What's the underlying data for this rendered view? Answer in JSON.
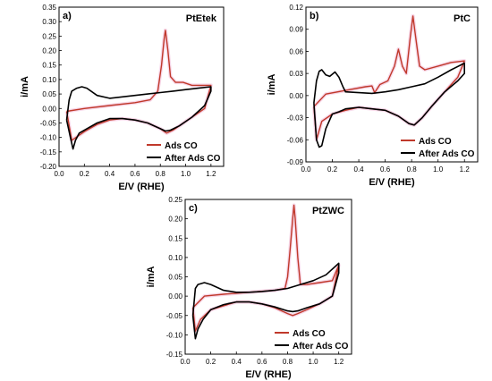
{
  "colors": {
    "ads": "#c0392b",
    "after": "#000000",
    "glow": "#f4c6de"
  },
  "chart_data": [
    {
      "type": "line",
      "panel_label": "a)",
      "title": "PtEtek",
      "xlabel": "E/V (RHE)",
      "ylabel": "i/mA",
      "xlim": [
        0.0,
        1.3
      ],
      "ylim": [
        -0.2,
        0.35
      ],
      "x_ticks": [
        "0.0",
        "0.2",
        "0.4",
        "0.6",
        "0.8",
        "1.0",
        "1.2"
      ],
      "y_ticks": [
        "-0.20",
        "-0.15",
        "-0.10",
        "-0.05",
        "0.00",
        "0.05",
        "0.10",
        "0.15",
        "0.20",
        "0.25",
        "0.30",
        "0.35"
      ],
      "legend": "bottom-right",
      "series": [
        {
          "name": "Ads CO",
          "color": "#c0392b",
          "x": [
            0.06,
            0.2,
            0.4,
            0.6,
            0.72,
            0.78,
            0.81,
            0.83,
            0.84,
            0.86,
            0.88,
            0.92,
            0.98,
            1.05,
            1.1,
            1.15,
            1.2,
            1.15,
            1.05,
            0.95,
            0.9,
            0.85,
            0.8,
            0.7,
            0.6,
            0.5,
            0.4,
            0.3,
            0.2,
            0.1,
            0.06
          ],
          "y": [
            -0.01,
            0.0,
            0.01,
            0.02,
            0.03,
            0.06,
            0.15,
            0.24,
            0.27,
            0.2,
            0.11,
            0.09,
            0.09,
            0.08,
            0.08,
            0.08,
            0.08,
            0.0,
            -0.03,
            -0.06,
            -0.075,
            -0.085,
            -0.07,
            -0.05,
            -0.04,
            -0.035,
            -0.04,
            -0.055,
            -0.08,
            -0.11,
            -0.01
          ]
        },
        {
          "name": "After Ads CO",
          "color": "#000000",
          "x": [
            0.06,
            0.08,
            0.1,
            0.14,
            0.18,
            0.22,
            0.3,
            0.4,
            0.5,
            0.6,
            0.7,
            0.8,
            0.9,
            1.0,
            1.1,
            1.2,
            1.2,
            1.15,
            1.05,
            0.95,
            0.88,
            0.84,
            0.8,
            0.7,
            0.6,
            0.5,
            0.4,
            0.3,
            0.22,
            0.16,
            0.13,
            0.11,
            0.09,
            0.06
          ],
          "y": [
            -0.04,
            0.03,
            0.06,
            0.07,
            0.075,
            0.07,
            0.045,
            0.035,
            0.04,
            0.045,
            0.05,
            0.055,
            0.06,
            0.065,
            0.07,
            0.075,
            0.06,
            0.01,
            -0.03,
            -0.06,
            -0.075,
            -0.078,
            -0.07,
            -0.05,
            -0.04,
            -0.035,
            -0.035,
            -0.05,
            -0.07,
            -0.085,
            -0.11,
            -0.14,
            -0.1,
            -0.04
          ]
        }
      ]
    },
    {
      "type": "line",
      "panel_label": "b)",
      "title": "PtC",
      "xlabel": "E/V (RHE)",
      "ylabel": "i/mA",
      "xlim": [
        0.0,
        1.3
      ],
      "ylim": [
        -0.09,
        0.12
      ],
      "x_ticks": [
        "0.0",
        "0.2",
        "0.4",
        "0.6",
        "0.8",
        "1.0",
        "1.2"
      ],
      "y_ticks": [
        "-0.09",
        "-0.06",
        "-0.03",
        "0.00",
        "0.03",
        "0.06",
        "0.09",
        "0.12"
      ],
      "legend": "bottom-right",
      "series": [
        {
          "name": "Ads CO",
          "color": "#c0392b",
          "x": [
            0.06,
            0.15,
            0.3,
            0.45,
            0.5,
            0.52,
            0.56,
            0.62,
            0.67,
            0.7,
            0.73,
            0.76,
            0.79,
            0.81,
            0.83,
            0.86,
            0.9,
            1.0,
            1.1,
            1.2,
            1.15,
            1.05,
            0.95,
            0.88,
            0.82,
            0.78,
            0.7,
            0.6,
            0.5,
            0.4,
            0.3,
            0.2,
            0.12,
            0.08,
            0.06
          ],
          "y": [
            -0.015,
            0.002,
            0.007,
            0.012,
            0.013,
            0.004,
            0.015,
            0.02,
            0.04,
            0.063,
            0.04,
            0.03,
            0.08,
            0.108,
            0.08,
            0.04,
            0.035,
            0.04,
            0.045,
            0.047,
            0.025,
            0.005,
            -0.015,
            -0.03,
            -0.04,
            -0.038,
            -0.028,
            -0.02,
            -0.018,
            -0.016,
            -0.02,
            -0.025,
            -0.035,
            -0.06,
            -0.015
          ]
        },
        {
          "name": "After Ads CO",
          "color": "#000000",
          "x": [
            0.06,
            0.08,
            0.1,
            0.12,
            0.15,
            0.18,
            0.22,
            0.25,
            0.28,
            0.3,
            0.4,
            0.5,
            0.6,
            0.7,
            0.8,
            0.9,
            1.0,
            1.1,
            1.2,
            1.2,
            1.15,
            1.05,
            0.95,
            0.88,
            0.82,
            0.78,
            0.7,
            0.6,
            0.5,
            0.4,
            0.3,
            0.25,
            0.2,
            0.15,
            0.12,
            0.1,
            0.08,
            0.06
          ],
          "y": [
            -0.01,
            0.02,
            0.033,
            0.035,
            0.028,
            0.026,
            0.032,
            0.025,
            0.012,
            0.005,
            0.004,
            0.003,
            0.005,
            0.008,
            0.012,
            0.016,
            0.025,
            0.035,
            0.044,
            0.03,
            0.02,
            0.005,
            -0.015,
            -0.03,
            -0.04,
            -0.038,
            -0.028,
            -0.02,
            -0.018,
            -0.016,
            -0.018,
            -0.022,
            -0.025,
            -0.045,
            -0.068,
            -0.07,
            -0.06,
            -0.01
          ]
        }
      ]
    },
    {
      "type": "line",
      "panel_label": "c)",
      "title": "PtZWC",
      "xlabel": "E/V (RHE)",
      "ylabel": "i/mA",
      "xlim": [
        0.0,
        1.3
      ],
      "ylim": [
        -0.15,
        0.25
      ],
      "x_ticks": [
        "0.0",
        "0.2",
        "0.4",
        "0.6",
        "0.8",
        "1.0",
        "1.2"
      ],
      "y_ticks": [
        "-0.15",
        "-0.10",
        "-0.05",
        "0.00",
        "0.05",
        "0.10",
        "0.15",
        "0.20",
        "0.25"
      ],
      "legend": "bottom-right",
      "series": [
        {
          "name": "Ads CO",
          "color": "#c0392b",
          "x": [
            0.06,
            0.15,
            0.3,
            0.5,
            0.7,
            0.78,
            0.8,
            0.82,
            0.84,
            0.85,
            0.86,
            0.88,
            0.9,
            0.95,
            1.05,
            1.15,
            1.2,
            1.15,
            1.05,
            0.95,
            0.88,
            0.84,
            0.8,
            0.7,
            0.6,
            0.5,
            0.4,
            0.3,
            0.2,
            0.12,
            0.08,
            0.06
          ],
          "y": [
            -0.03,
            0.0,
            0.005,
            0.01,
            0.015,
            0.02,
            0.05,
            0.12,
            0.2,
            0.235,
            0.2,
            0.1,
            0.03,
            0.03,
            0.035,
            0.04,
            0.08,
            0.0,
            -0.02,
            -0.035,
            -0.045,
            -0.05,
            -0.045,
            -0.03,
            -0.02,
            -0.015,
            -0.015,
            -0.025,
            -0.035,
            -0.06,
            -0.09,
            -0.03
          ]
        },
        {
          "name": "After Ads CO",
          "color": "#000000",
          "x": [
            0.06,
            0.08,
            0.1,
            0.15,
            0.2,
            0.3,
            0.4,
            0.5,
            0.6,
            0.7,
            0.8,
            0.9,
            1.0,
            1.1,
            1.2,
            1.2,
            1.15,
            1.05,
            0.95,
            0.88,
            0.84,
            0.8,
            0.7,
            0.6,
            0.5,
            0.4,
            0.3,
            0.2,
            0.14,
            0.1,
            0.08,
            0.06
          ],
          "y": [
            -0.05,
            0.02,
            0.03,
            0.035,
            0.03,
            0.015,
            0.01,
            0.01,
            0.012,
            0.015,
            0.02,
            0.03,
            0.04,
            0.055,
            0.085,
            0.06,
            0.0,
            -0.02,
            -0.03,
            -0.038,
            -0.04,
            -0.038,
            -0.028,
            -0.02,
            -0.015,
            -0.015,
            -0.022,
            -0.035,
            -0.06,
            -0.085,
            -0.11,
            -0.05
          ]
        }
      ]
    }
  ]
}
